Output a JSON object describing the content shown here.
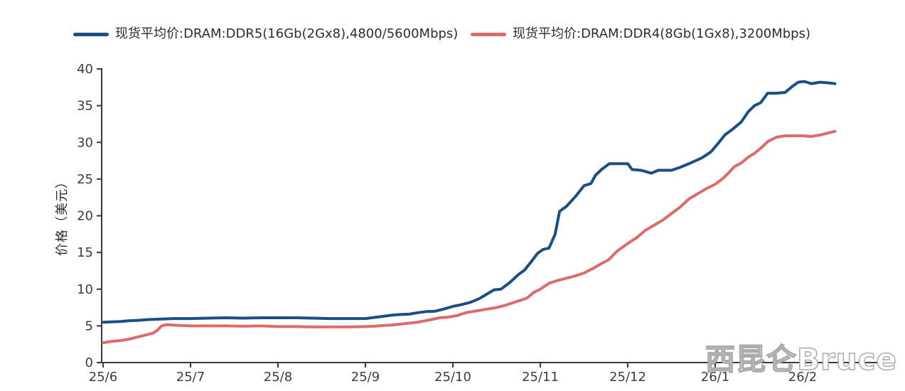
{
  "watermark": "西昆仑Bruce",
  "chart_data": {
    "type": "line",
    "title": "",
    "xlabel": "",
    "ylabel": "价格（美元）",
    "ylim": [
      0,
      40
    ],
    "yticks": [
      0,
      5,
      10,
      15,
      20,
      25,
      30,
      35,
      40
    ],
    "x_categories": [
      "25/6",
      "25/7",
      "25/8",
      "25/9",
      "25/10",
      "25/11",
      "25/12",
      "26/1",
      "26/2"
    ],
    "x_unit": "year/month (x values below are months since 25/6)",
    "xlim": [
      0,
      9.02
    ],
    "grid": false,
    "legend_position": "top",
    "series": [
      {
        "name": "现货平均价:DRAM:DDR5(16Gb(2Gx8),4800/5600Mbps)",
        "color": "#1c4e86",
        "points": [
          [
            0.0,
            5.5
          ],
          [
            0.1,
            5.55
          ],
          [
            0.2,
            5.6
          ],
          [
            0.3,
            5.7
          ],
          [
            0.4,
            5.75
          ],
          [
            0.5,
            5.85
          ],
          [
            0.6,
            5.9
          ],
          [
            0.7,
            5.95
          ],
          [
            0.8,
            6.0
          ],
          [
            1.0,
            6.0
          ],
          [
            1.2,
            6.05
          ],
          [
            1.4,
            6.1
          ],
          [
            1.6,
            6.05
          ],
          [
            1.8,
            6.1
          ],
          [
            2.0,
            6.1
          ],
          [
            2.2,
            6.1
          ],
          [
            2.4,
            6.05
          ],
          [
            2.6,
            6.0
          ],
          [
            2.8,
            6.0
          ],
          [
            3.0,
            6.0
          ],
          [
            3.1,
            6.15
          ],
          [
            3.2,
            6.3
          ],
          [
            3.3,
            6.45
          ],
          [
            3.4,
            6.55
          ],
          [
            3.5,
            6.6
          ],
          [
            3.6,
            6.8
          ],
          [
            3.7,
            6.95
          ],
          [
            3.8,
            7.0
          ],
          [
            3.9,
            7.3
          ],
          [
            4.0,
            7.65
          ],
          [
            4.1,
            7.9
          ],
          [
            4.2,
            8.2
          ],
          [
            4.3,
            8.7
          ],
          [
            4.4,
            9.4
          ],
          [
            4.47,
            9.9
          ],
          [
            4.55,
            10.0
          ],
          [
            4.65,
            10.9
          ],
          [
            4.75,
            12.0
          ],
          [
            4.82,
            12.6
          ],
          [
            4.9,
            13.8
          ],
          [
            4.97,
            14.9
          ],
          [
            5.03,
            15.4
          ],
          [
            5.1,
            15.6
          ],
          [
            5.17,
            17.5
          ],
          [
            5.22,
            20.6
          ],
          [
            5.3,
            21.3
          ],
          [
            5.4,
            22.6
          ],
          [
            5.5,
            24.1
          ],
          [
            5.58,
            24.4
          ],
          [
            5.63,
            25.5
          ],
          [
            5.7,
            26.3
          ],
          [
            5.79,
            27.1
          ],
          [
            5.9,
            27.1
          ],
          [
            6.0,
            27.1
          ],
          [
            6.05,
            26.3
          ],
          [
            6.15,
            26.2
          ],
          [
            6.27,
            25.8
          ],
          [
            6.35,
            26.2
          ],
          [
            6.5,
            26.2
          ],
          [
            6.6,
            26.6
          ],
          [
            6.72,
            27.2
          ],
          [
            6.85,
            27.9
          ],
          [
            6.95,
            28.7
          ],
          [
            7.03,
            29.8
          ],
          [
            7.11,
            31.0
          ],
          [
            7.2,
            31.8
          ],
          [
            7.3,
            32.8
          ],
          [
            7.38,
            34.2
          ],
          [
            7.45,
            35.0
          ],
          [
            7.52,
            35.4
          ],
          [
            7.6,
            36.7
          ],
          [
            7.7,
            36.7
          ],
          [
            7.8,
            36.8
          ],
          [
            7.88,
            37.6
          ],
          [
            7.95,
            38.2
          ],
          [
            8.02,
            38.3
          ],
          [
            8.1,
            38.0
          ],
          [
            8.2,
            38.2
          ],
          [
            8.3,
            38.1
          ],
          [
            8.37,
            38.0
          ]
        ]
      },
      {
        "name": "现货平均价:DRAM:DDR4(8Gb(1Gx8),3200Mbps)",
        "color": "#dd6b6b",
        "points": [
          [
            0.0,
            2.7
          ],
          [
            0.1,
            2.9
          ],
          [
            0.2,
            3.0
          ],
          [
            0.3,
            3.2
          ],
          [
            0.4,
            3.5
          ],
          [
            0.5,
            3.8
          ],
          [
            0.57,
            4.0
          ],
          [
            0.62,
            4.4
          ],
          [
            0.67,
            5.0
          ],
          [
            0.72,
            5.15
          ],
          [
            0.8,
            5.1
          ],
          [
            0.9,
            5.05
          ],
          [
            1.0,
            5.0
          ],
          [
            1.2,
            5.0
          ],
          [
            1.4,
            5.0
          ],
          [
            1.6,
            4.95
          ],
          [
            1.8,
            5.0
          ],
          [
            2.0,
            4.9
          ],
          [
            2.2,
            4.9
          ],
          [
            2.4,
            4.85
          ],
          [
            2.6,
            4.85
          ],
          [
            2.8,
            4.85
          ],
          [
            3.0,
            4.9
          ],
          [
            3.1,
            4.95
          ],
          [
            3.2,
            5.05
          ],
          [
            3.3,
            5.1
          ],
          [
            3.45,
            5.3
          ],
          [
            3.6,
            5.5
          ],
          [
            3.75,
            5.85
          ],
          [
            3.85,
            6.1
          ],
          [
            3.95,
            6.2
          ],
          [
            4.05,
            6.4
          ],
          [
            4.15,
            6.8
          ],
          [
            4.25,
            7.0
          ],
          [
            4.4,
            7.3
          ],
          [
            4.5,
            7.5
          ],
          [
            4.6,
            7.8
          ],
          [
            4.7,
            8.2
          ],
          [
            4.78,
            8.5
          ],
          [
            4.85,
            8.8
          ],
          [
            4.93,
            9.6
          ],
          [
            5.0,
            10.0
          ],
          [
            5.1,
            10.8
          ],
          [
            5.2,
            11.2
          ],
          [
            5.3,
            11.5
          ],
          [
            5.4,
            11.8
          ],
          [
            5.5,
            12.2
          ],
          [
            5.6,
            12.8
          ],
          [
            5.7,
            13.5
          ],
          [
            5.78,
            14.0
          ],
          [
            5.88,
            15.2
          ],
          [
            5.95,
            15.8
          ],
          [
            6.02,
            16.4
          ],
          [
            6.1,
            17.0
          ],
          [
            6.2,
            18.0
          ],
          [
            6.3,
            18.7
          ],
          [
            6.4,
            19.4
          ],
          [
            6.5,
            20.3
          ],
          [
            6.6,
            21.2
          ],
          [
            6.7,
            22.3
          ],
          [
            6.8,
            23.0
          ],
          [
            6.9,
            23.7
          ],
          [
            7.0,
            24.3
          ],
          [
            7.08,
            25.0
          ],
          [
            7.15,
            25.8
          ],
          [
            7.22,
            26.7
          ],
          [
            7.3,
            27.2
          ],
          [
            7.38,
            28.0
          ],
          [
            7.45,
            28.5
          ],
          [
            7.53,
            29.3
          ],
          [
            7.6,
            30.1
          ],
          [
            7.7,
            30.7
          ],
          [
            7.8,
            30.9
          ],
          [
            7.9,
            30.9
          ],
          [
            8.0,
            30.9
          ],
          [
            8.1,
            30.8
          ],
          [
            8.2,
            31.0
          ],
          [
            8.3,
            31.3
          ],
          [
            8.37,
            31.5
          ]
        ]
      }
    ]
  }
}
